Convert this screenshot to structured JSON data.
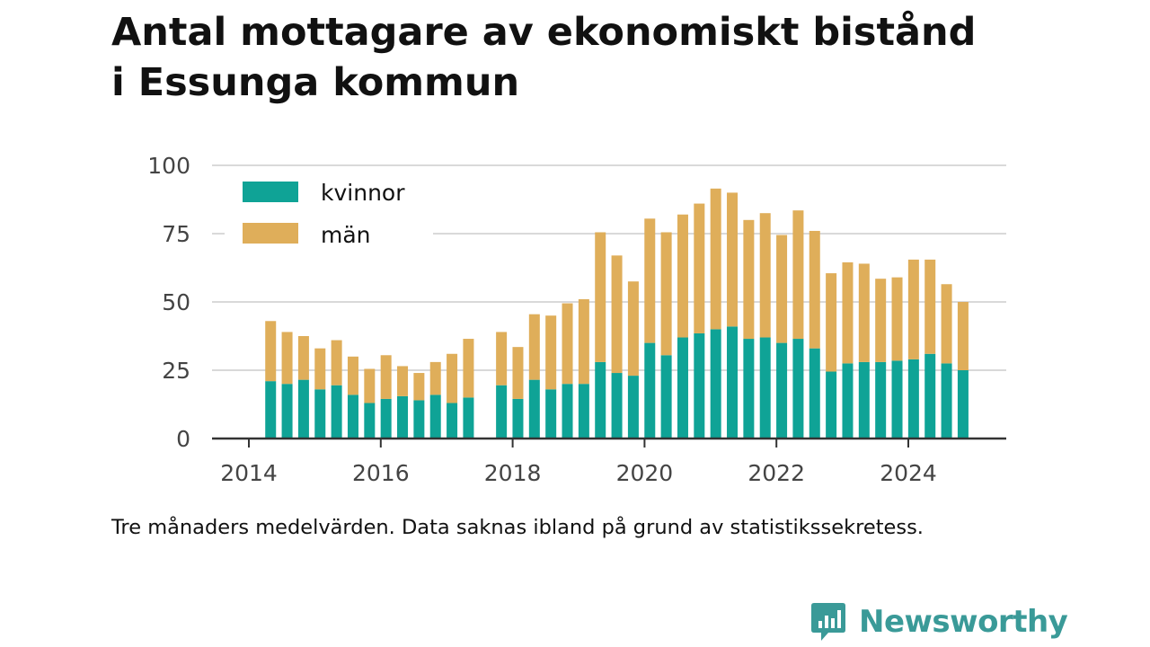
{
  "title_line1": "Antal mottagare av ekonomiskt bistånd",
  "title_line2": "i Essunga kommun",
  "footnote": "Tre månaders medelvärden. Data saknas ibland på grund av statistikssekretess.",
  "brand": {
    "name": "Newsworthy",
    "icon": "newsworthy-logo-icon",
    "color": "#3a9a98"
  },
  "colors": {
    "kvinnor": "#0fa396",
    "man": "#dfae5a",
    "grid": "#d9d9d9",
    "axis": "#333333",
    "tick": "#444444"
  },
  "chart_data": {
    "type": "bar",
    "stacked": true,
    "title": "Antal mottagare av ekonomiskt bistånd i Essunga kommun",
    "ylim": [
      0,
      100
    ],
    "xlim": [
      2013.75,
      2025.75
    ],
    "y_ticks": [
      "0",
      "25",
      "50",
      "75",
      "100"
    ],
    "x_ticks": [
      "2014",
      "2016",
      "2018",
      "2020",
      "2022",
      "2024"
    ],
    "grid": true,
    "legend_position": "top-left",
    "x": [
      2014.33,
      2014.58,
      2014.83,
      2015.08,
      2015.33,
      2015.58,
      2015.83,
      2016.08,
      2016.33,
      2016.58,
      2016.83,
      2017.08,
      2017.33,
      2017.83,
      2018.08,
      2018.33,
      2018.58,
      2018.83,
      2019.08,
      2019.33,
      2019.58,
      2019.83,
      2020.08,
      2020.33,
      2020.58,
      2020.83,
      2021.08,
      2021.33,
      2021.58,
      2021.83,
      2022.08,
      2022.33,
      2022.58,
      2022.83,
      2023.08,
      2023.33,
      2023.58,
      2023.83,
      2024.08,
      2024.33,
      2024.58,
      2024.83
    ],
    "series": [
      {
        "name": "kvinnor",
        "values": [
          21,
          20,
          21.5,
          18,
          19.5,
          16,
          13,
          14.5,
          15.5,
          14,
          16,
          13,
          15,
          19.5,
          14.5,
          21.5,
          18,
          20,
          20,
          28,
          24,
          23,
          35,
          30.5,
          37,
          38.5,
          40,
          41,
          36.5,
          37,
          35,
          36.5,
          33,
          24.5,
          27.5,
          28,
          28,
          28.5,
          29,
          31,
          27.5,
          25
        ]
      },
      {
        "name": "män",
        "values": [
          22,
          19,
          16,
          15,
          16.5,
          14,
          12.5,
          16,
          11,
          10,
          12,
          18,
          21.5,
          19.5,
          19,
          24,
          27,
          29.5,
          31,
          47.5,
          43,
          34.5,
          45.5,
          45,
          45,
          47.5,
          51.5,
          49,
          43.5,
          45.5,
          39.5,
          47,
          43,
          36,
          37,
          36,
          30.5,
          30.5,
          36.5,
          34.5,
          29,
          25
        ]
      }
    ]
  }
}
